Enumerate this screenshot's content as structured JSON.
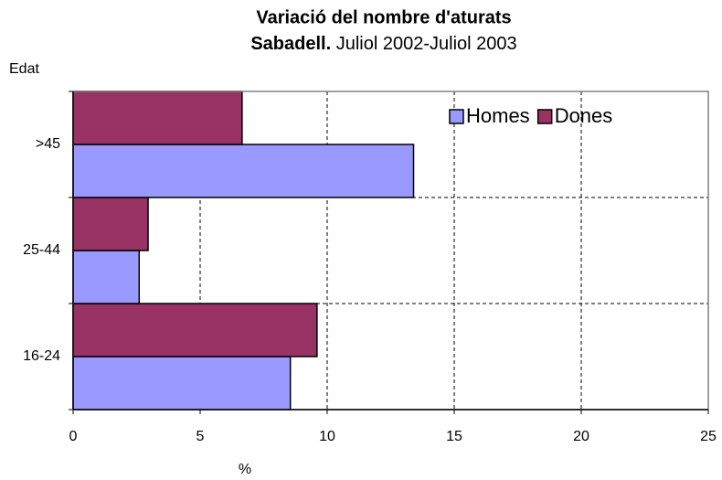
{
  "chart_data": {
    "type": "hbar",
    "title": "Variació del nombre d'aturats",
    "subtitle_bold": "Sabadell.",
    "subtitle": "Juliol 2002-Juliol 2003",
    "y_label": "Edat",
    "x_label": "%",
    "categories": [
      "16-24",
      "25-44",
      ">45"
    ],
    "series": [
      {
        "name": "Homes",
        "color": "#9999ff",
        "values": [
          8.55,
          2.6,
          13.4
        ]
      },
      {
        "name": "Dones",
        "color": "#993366",
        "values": [
          9.6,
          2.95,
          6.65
        ]
      }
    ],
    "xlim": [
      0,
      25
    ],
    "xticks": [
      0,
      5,
      10,
      15,
      20,
      25
    ],
    "grid": true,
    "legend": "upper right"
  }
}
